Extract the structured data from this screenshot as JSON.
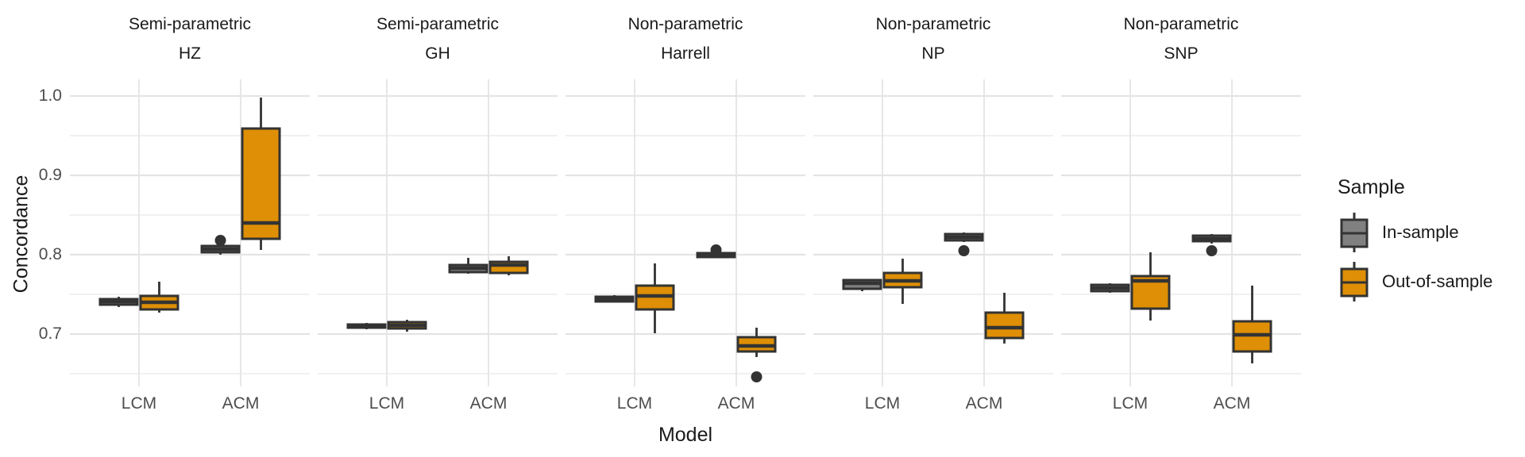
{
  "chart_data": {
    "type": "boxplot",
    "layout": "5 horizontal facets, shared y axis, legend right",
    "y_axis": {
      "label": "Concordance",
      "ticks": [
        "1.0",
        "0.9",
        "0.8",
        "0.7"
      ],
      "tick_values": [
        1.0,
        0.9,
        0.8,
        0.7
      ],
      "minor_ticks": [
        0.95,
        0.85,
        0.75,
        0.65
      ],
      "range": [
        0.634,
        1.021
      ],
      "grid": true
    },
    "x_axis": {
      "label": "Model",
      "categories": [
        "LCM",
        "ACM"
      ]
    },
    "legend": {
      "title": "Sample",
      "entries": [
        {
          "label": "In-sample",
          "fill": "#808080"
        },
        {
          "label": "Out-of-sample",
          "fill": "#DE8F05"
        }
      ]
    },
    "colors": {
      "in_sample_fill": "#808080",
      "out_sample_fill": "#DE8F05",
      "box_stroke": "#333333",
      "grid_major": "#E4E4E4",
      "grid_minor": "#ECECEC",
      "axis_text": "#4d4d4d",
      "title_text": "#1a1a1a"
    },
    "facets": [
      {
        "class": "Semi-parametric",
        "measure": "HZ",
        "boxes": [
          {
            "model": "LCM",
            "sample": "In-sample",
            "low": 0.734,
            "q1": 0.737,
            "median": 0.741,
            "q3": 0.744,
            "high": 0.747,
            "outliers": []
          },
          {
            "model": "LCM",
            "sample": "Out-of-sample",
            "low": 0.727,
            "q1": 0.731,
            "median": 0.74,
            "q3": 0.748,
            "high": 0.766,
            "outliers": []
          },
          {
            "model": "ACM",
            "sample": "In-sample",
            "low": 0.8,
            "q1": 0.803,
            "median": 0.807,
            "q3": 0.811,
            "high": 0.812,
            "outliers": [
              0.818
            ]
          },
          {
            "model": "ACM",
            "sample": "Out-of-sample",
            "low": 0.806,
            "q1": 0.82,
            "median": 0.84,
            "q3": 0.959,
            "high": 0.998,
            "outliers": []
          }
        ]
      },
      {
        "class": "Semi-parametric",
        "measure": "GH",
        "boxes": [
          {
            "model": "LCM",
            "sample": "In-sample",
            "low": 0.706,
            "q1": 0.708,
            "median": 0.71,
            "q3": 0.712,
            "high": 0.714,
            "outliers": []
          },
          {
            "model": "LCM",
            "sample": "Out-of-sample",
            "low": 0.703,
            "q1": 0.707,
            "median": 0.711,
            "q3": 0.715,
            "high": 0.718,
            "outliers": []
          },
          {
            "model": "ACM",
            "sample": "In-sample",
            "low": 0.776,
            "q1": 0.778,
            "median": 0.783,
            "q3": 0.787,
            "high": 0.796,
            "outliers": []
          },
          {
            "model": "ACM",
            "sample": "Out-of-sample",
            "low": 0.774,
            "q1": 0.777,
            "median": 0.787,
            "q3": 0.791,
            "high": 0.798,
            "outliers": []
          }
        ]
      },
      {
        "class": "Non-parametric",
        "measure": "Harrell",
        "boxes": [
          {
            "model": "LCM",
            "sample": "In-sample",
            "low": 0.74,
            "q1": 0.741,
            "median": 0.744,
            "q3": 0.747,
            "high": 0.749,
            "outliers": []
          },
          {
            "model": "LCM",
            "sample": "Out-of-sample",
            "low": 0.701,
            "q1": 0.731,
            "median": 0.748,
            "q3": 0.761,
            "high": 0.789,
            "outliers": []
          },
          {
            "model": "ACM",
            "sample": "In-sample",
            "low": 0.796,
            "q1": 0.797,
            "median": 0.8,
            "q3": 0.802,
            "high": 0.803,
            "outliers": [
              0.806
            ]
          },
          {
            "model": "ACM",
            "sample": "Out-of-sample",
            "low": 0.671,
            "q1": 0.678,
            "median": 0.685,
            "q3": 0.696,
            "high": 0.708,
            "outliers": [
              0.646
            ]
          }
        ]
      },
      {
        "class": "Non-parametric",
        "measure": "NP",
        "boxes": [
          {
            "model": "LCM",
            "sample": "In-sample",
            "low": 0.754,
            "q1": 0.757,
            "median": 0.764,
            "q3": 0.768,
            "high": 0.769,
            "outliers": []
          },
          {
            "model": "LCM",
            "sample": "Out-of-sample",
            "low": 0.738,
            "q1": 0.759,
            "median": 0.767,
            "q3": 0.777,
            "high": 0.795,
            "outliers": []
          },
          {
            "model": "ACM",
            "sample": "In-sample",
            "low": 0.816,
            "q1": 0.818,
            "median": 0.822,
            "q3": 0.826,
            "high": 0.828,
            "outliers": [
              0.805
            ]
          },
          {
            "model": "ACM",
            "sample": "Out-of-sample",
            "low": 0.688,
            "q1": 0.695,
            "median": 0.708,
            "q3": 0.727,
            "high": 0.752,
            "outliers": []
          }
        ]
      },
      {
        "class": "Non-parametric",
        "measure": "SNP",
        "boxes": [
          {
            "model": "LCM",
            "sample": "In-sample",
            "low": 0.752,
            "q1": 0.754,
            "median": 0.758,
            "q3": 0.762,
            "high": 0.764,
            "outliers": []
          },
          {
            "model": "LCM",
            "sample": "Out-of-sample",
            "low": 0.717,
            "q1": 0.732,
            "median": 0.767,
            "q3": 0.773,
            "high": 0.803,
            "outliers": []
          },
          {
            "model": "ACM",
            "sample": "In-sample",
            "low": 0.814,
            "q1": 0.817,
            "median": 0.82,
            "q3": 0.824,
            "high": 0.826,
            "outliers": [
              0.805
            ]
          },
          {
            "model": "ACM",
            "sample": "Out-of-sample",
            "low": 0.663,
            "q1": 0.678,
            "median": 0.699,
            "q3": 0.716,
            "high": 0.761,
            "outliers": []
          }
        ]
      }
    ]
  }
}
